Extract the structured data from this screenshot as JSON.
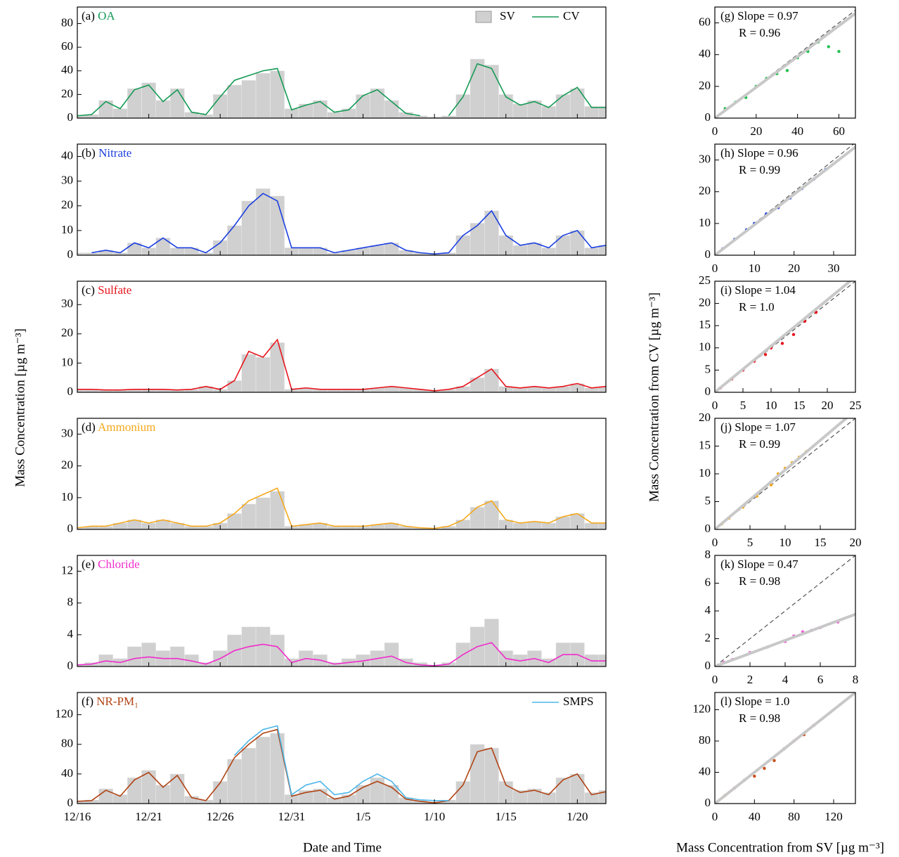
{
  "labels": {
    "y_label": "Mass Concentration [µg m⁻³]",
    "x_label": "Date and Time",
    "scatter_y_label": "Mass Concentration from CV [µg m⁻³]",
    "scatter_x_label": "Mass Concentration from SV [µg m⁻³]"
  },
  "chart_data": [
    {
      "type": "line",
      "panel": "(a)",
      "title": "OA",
      "ylim": [
        0,
        94
      ],
      "yticks": [
        0,
        20,
        40,
        60,
        80
      ],
      "series": [
        {
          "name": "SV",
          "style": "area",
          "color": "#d0d0d0",
          "values": [
            2,
            3,
            15,
            8,
            25,
            30,
            15,
            25,
            5,
            3,
            20,
            28,
            32,
            38,
            40,
            8,
            12,
            15,
            5,
            8,
            20,
            25,
            15,
            5,
            2,
            1,
            2,
            20,
            50,
            45,
            20,
            12,
            15,
            10,
            20,
            25,
            10,
            10
          ]
        },
        {
          "name": "CV",
          "style": "line",
          "color": "#159a55",
          "values": [
            2,
            3,
            14,
            8,
            24,
            28,
            14,
            24,
            5,
            3,
            18,
            32,
            36,
            40,
            42,
            7,
            11,
            14,
            5,
            7,
            19,
            24,
            14,
            4,
            2,
            null,
            2,
            18,
            46,
            42,
            18,
            11,
            14,
            9,
            19,
            26,
            9,
            9
          ]
        }
      ]
    },
    {
      "type": "line",
      "panel": "(b)",
      "title": "Nitrate",
      "ylim": [
        0,
        45
      ],
      "yticks": [
        0,
        10,
        20,
        30,
        40
      ],
      "series": [
        {
          "style": "area",
          "color": "#d0d0d0",
          "values": [
            1,
            1,
            2,
            1,
            5,
            3,
            7,
            3,
            3,
            1,
            6,
            12,
            22,
            27,
            24,
            3,
            3,
            3,
            1,
            2,
            3,
            4,
            5,
            2,
            1,
            0.5,
            1,
            8,
            13,
            18,
            8,
            4,
            5,
            3,
            8,
            10,
            3,
            4
          ]
        },
        {
          "style": "line",
          "color": "#1c3fe0",
          "values": [
            null,
            1,
            2,
            1,
            5,
            3,
            7,
            3,
            3,
            1,
            5,
            12,
            20,
            25,
            22,
            3,
            3,
            3,
            1,
            2,
            3,
            4,
            5,
            2,
            1,
            0.5,
            1,
            8,
            12,
            18,
            8,
            4,
            5,
            3,
            8,
            10,
            3,
            4
          ]
        }
      ]
    },
    {
      "type": "line",
      "panel": "(c)",
      "title": "Sulfate",
      "ylim": [
        0,
        38
      ],
      "yticks": [
        0,
        10,
        20,
        30
      ],
      "series": [
        {
          "style": "area",
          "color": "#d0d0d0",
          "values": [
            1,
            1,
            0.8,
            0.8,
            1,
            1,
            1,
            0.8,
            1,
            2,
            1,
            4,
            13,
            12,
            17,
            1,
            1.5,
            1,
            1,
            1,
            1,
            1.5,
            2,
            1.5,
            1,
            0.5,
            1,
            2,
            5,
            8,
            2,
            1.5,
            2,
            1.5,
            2,
            3,
            1.5,
            2
          ]
        },
        {
          "style": "line",
          "color": "#e8141c",
          "values": [
            1,
            1,
            0.8,
            0.8,
            1,
            1,
            1,
            0.8,
            1,
            2,
            1,
            4,
            14,
            12,
            18,
            1,
            1.5,
            1,
            1,
            1,
            1,
            1.5,
            2,
            1.5,
            1,
            0.5,
            1,
            2,
            5,
            8,
            2,
            1.5,
            2,
            1.5,
            2,
            3,
            1.5,
            2
          ]
        }
      ]
    },
    {
      "type": "line",
      "panel": "(d)",
      "title": "Ammonium",
      "ylim": [
        0,
        35
      ],
      "yticks": [
        0,
        10,
        20,
        30
      ],
      "series": [
        {
          "style": "area",
          "color": "#d0d0d0",
          "values": [
            0.5,
            1,
            1,
            2,
            3,
            2,
            3,
            2,
            1,
            1,
            2,
            5,
            8,
            10,
            12,
            1,
            1.5,
            2,
            1,
            1,
            1,
            1.5,
            2,
            1,
            0.5,
            0.3,
            1,
            3,
            7,
            9,
            3,
            2,
            2.5,
            2,
            4,
            5,
            2,
            2
          ]
        },
        {
          "style": "line",
          "color": "#f5a81c",
          "values": [
            0.5,
            1,
            1,
            2,
            3,
            2,
            3,
            2,
            1,
            1,
            2,
            5,
            9,
            11,
            13,
            1,
            1.5,
            2,
            1,
            1,
            1,
            1.5,
            2,
            1,
            0.5,
            0.3,
            1,
            3,
            7,
            9,
            3,
            2,
            2.5,
            2,
            4,
            5,
            2,
            2
          ]
        }
      ]
    },
    {
      "type": "line",
      "panel": "(e)",
      "title": "Chloride",
      "ylim": [
        0,
        14
      ],
      "yticks": [
        0,
        4,
        8,
        12
      ],
      "series": [
        {
          "style": "area",
          "color": "#d0d0d0",
          "values": [
            0.3,
            0.5,
            1.5,
            1,
            2.5,
            3,
            2,
            2.5,
            1.5,
            0.5,
            2,
            4,
            5,
            5,
            4,
            1,
            2,
            1.5,
            0.5,
            1,
            1.5,
            2,
            3,
            1,
            0.5,
            0.2,
            0.5,
            3,
            5,
            6,
            2,
            1.5,
            2,
            1,
            3,
            3,
            1.5,
            1.5
          ]
        },
        {
          "style": "line",
          "color": "#f02ccc",
          "values": [
            0.2,
            0.3,
            0.7,
            0.5,
            1,
            1.2,
            1,
            1,
            0.7,
            0.3,
            1,
            2,
            2.5,
            2.8,
            2.5,
            0.5,
            1,
            0.8,
            0.3,
            0.5,
            0.7,
            1,
            1.3,
            0.5,
            0.2,
            0.1,
            0.3,
            1.5,
            2.5,
            3,
            1,
            0.7,
            1,
            0.5,
            1.5,
            1.5,
            0.7,
            0.7
          ]
        }
      ]
    },
    {
      "type": "line",
      "panel": "(f)",
      "title": "NR-PM₁",
      "ylim": [
        0,
        150
      ],
      "yticks": [
        0,
        40,
        80,
        120
      ],
      "categories": [
        "12/16",
        null,
        null,
        null,
        null,
        "12/21",
        null,
        null,
        null,
        null,
        "12/26",
        null,
        null,
        null,
        null,
        "12/31",
        null,
        null,
        null,
        null,
        "1/5",
        null,
        null,
        null,
        null,
        "1/10",
        null,
        null,
        null,
        null,
        "1/15",
        null,
        null,
        null,
        null,
        "1/20",
        null,
        null
      ],
      "series": [
        {
          "style": "area",
          "color": "#d0d0d0",
          "values": [
            4,
            5,
            20,
            12,
            35,
            45,
            25,
            40,
            10,
            5,
            30,
            60,
            75,
            90,
            95,
            12,
            18,
            20,
            8,
            12,
            25,
            35,
            25,
            8,
            4,
            2,
            5,
            30,
            80,
            75,
            30,
            18,
            20,
            15,
            35,
            40,
            15,
            18
          ]
        },
        {
          "style": "line",
          "color": "#b04314",
          "values": [
            3,
            4,
            18,
            10,
            32,
            42,
            22,
            38,
            8,
            4,
            28,
            62,
            80,
            95,
            100,
            10,
            15,
            18,
            6,
            10,
            22,
            30,
            22,
            6,
            3,
            1,
            4,
            25,
            70,
            75,
            25,
            15,
            18,
            12,
            32,
            40,
            12,
            16
          ]
        },
        {
          "name": "SMPS",
          "style": "line",
          "color": "#4db6ea",
          "values": [
            null,
            null,
            null,
            null,
            null,
            null,
            null,
            null,
            null,
            null,
            null,
            65,
            85,
            100,
            105,
            12,
            25,
            30,
            12,
            15,
            30,
            40,
            30,
            8,
            5,
            4,
            4,
            null,
            null,
            null,
            null,
            null,
            null,
            null,
            null,
            null,
            null,
            null
          ]
        }
      ]
    },
    {
      "type": "scatter",
      "panel": "(g)",
      "annotations": [
        "Slope = 0.97",
        "R = 0.96"
      ],
      "fit_slope": 0.97,
      "xlim": [
        0,
        68
      ],
      "ylim": [
        0,
        70
      ],
      "xticks": [
        0,
        20,
        40,
        60
      ],
      "yticks": [
        0,
        20,
        40,
        60
      ],
      "x": [
        5,
        10,
        15,
        20,
        25,
        30,
        35,
        40,
        45,
        50,
        55,
        60
      ],
      "series": [
        {
          "color": "#22c04e",
          "values": [
            6,
            10,
            13,
            20,
            25,
            28,
            30,
            38,
            42,
            48,
            45,
            42
          ]
        }
      ]
    },
    {
      "type": "scatter",
      "panel": "(h)",
      "annotations": [
        "Slope = 0.96",
        "R = 0.99"
      ],
      "fit_slope": 0.96,
      "xlim": [
        0,
        35.5
      ],
      "ylim": [
        0,
        35
      ],
      "xticks": [
        0,
        10,
        20,
        30
      ],
      "yticks": [
        0,
        10,
        20,
        30
      ],
      "x": [
        2,
        5,
        8,
        10,
        13,
        16,
        19,
        22,
        25,
        28
      ],
      "series": [
        {
          "color": "#1c3fe0",
          "values": [
            2,
            5,
            8,
            10,
            13,
            15,
            18,
            21,
            24,
            27
          ]
        }
      ]
    },
    {
      "type": "scatter",
      "panel": "(i)",
      "annotations": [
        "Slope = 1.04",
        "R = 1.0"
      ],
      "fit_slope": 1.04,
      "xlim": [
        0,
        25
      ],
      "ylim": [
        0,
        25
      ],
      "xticks": [
        0,
        5,
        10,
        15,
        20,
        25
      ],
      "yticks": [
        0,
        5,
        10,
        15,
        20,
        25
      ],
      "x": [
        1,
        3,
        5,
        7,
        9,
        10,
        12,
        14,
        16,
        18
      ],
      "series": [
        {
          "color": "#e8141c",
          "values": [
            1,
            3,
            5,
            7,
            8.5,
            10,
            11,
            13,
            16,
            18
          ]
        }
      ]
    },
    {
      "type": "scatter",
      "panel": "(j)",
      "annotations": [
        "Slope = 1.07",
        "R = 0.99"
      ],
      "fit_slope": 1.07,
      "xlim": [
        0,
        20
      ],
      "ylim": [
        0,
        20
      ],
      "xticks": [
        0,
        5,
        10,
        15,
        20
      ],
      "yticks": [
        0,
        5,
        10,
        15,
        20
      ],
      "x": [
        1,
        2,
        4,
        6,
        8,
        9,
        10,
        11,
        12,
        13
      ],
      "series": [
        {
          "color": "#f5a81c",
          "values": [
            1,
            2,
            4,
            6,
            8,
            10,
            11,
            12,
            13,
            14
          ]
        }
      ]
    },
    {
      "type": "scatter",
      "panel": "(k)",
      "annotations": [
        "Slope = 0.47",
        "R = 0.98"
      ],
      "fit_slope": 0.47,
      "xlim": [
        0,
        8
      ],
      "ylim": [
        0,
        8
      ],
      "xticks": [
        0,
        2,
        4,
        6,
        8
      ],
      "yticks": [
        0,
        2,
        4,
        6,
        8
      ],
      "x": [
        0.5,
        1,
        2,
        3,
        4,
        4.5,
        5,
        5.5,
        6,
        7
      ],
      "series": [
        {
          "color": "#f25ad6",
          "values": [
            0.3,
            0.5,
            1,
            1.4,
            1.8,
            2.2,
            2.5,
            2.6,
            2.8,
            3.2
          ]
        }
      ]
    },
    {
      "type": "scatter",
      "panel": "(l)",
      "annotations": [
        "Slope = 1.0",
        "R = 0.98"
      ],
      "fit_slope": 1.0,
      "xlim": [
        0,
        142
      ],
      "ylim": [
        0,
        142
      ],
      "xticks": [
        0,
        40,
        80,
        120
      ],
      "yticks": [
        0,
        40,
        80,
        120
      ],
      "x": [
        10,
        20,
        30,
        40,
        50,
        60,
        70,
        80,
        90,
        100
      ],
      "series": [
        {
          "color": "#c8501a",
          "values": [
            10,
            20,
            30,
            35,
            45,
            55,
            70,
            80,
            88,
            100
          ]
        }
      ]
    }
  ]
}
